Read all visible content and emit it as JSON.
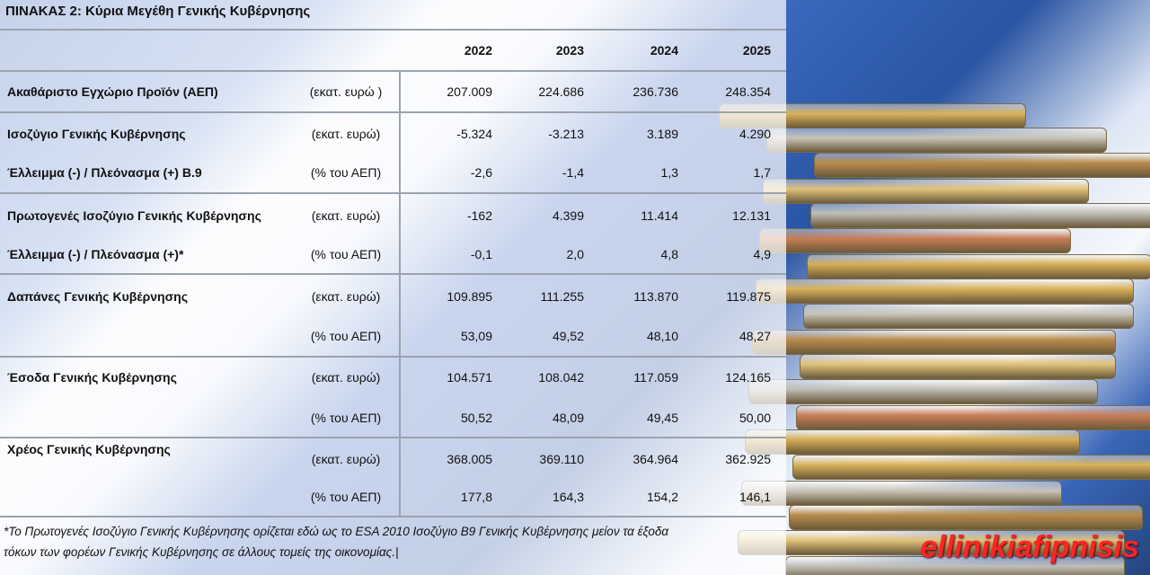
{
  "header": {
    "title": "ΠΙΝΑΚΑΣ 2: Κύρια Μεγέθη Γενικής Κυβέρνησης"
  },
  "table": {
    "columns": [
      "2022",
      "2023",
      "2024",
      "2025"
    ],
    "groups": [
      {
        "rows": [
          {
            "label": "Ακαθάριστο Εγχώριο Προϊόν (ΑΕΠ)",
            "unit": "(εκατ. ευρώ )",
            "values": [
              "207.009",
              "224.686",
              "236.736",
              "248.354"
            ]
          }
        ]
      },
      {
        "rows": [
          {
            "label": "Ισοζύγιο Γενικής Κυβέρνησης",
            "unit": "(εκατ. ευρώ)",
            "values": [
              "-5.324",
              "-3.213",
              "3.189",
              "4.290"
            ]
          },
          {
            "label": "Έλλειμμα  (-) / Πλεόνασμα (+) Β.9",
            "unit": "(% του ΑΕΠ)",
            "values": [
              "-2,6",
              "-1,4",
              "1,3",
              "1,7"
            ]
          }
        ]
      },
      {
        "rows": [
          {
            "label": "Πρωτογενές Ισοζύγιο  Γενικής Κυβέρνησης",
            "unit": "(εκατ. ευρώ)",
            "values": [
              "-162",
              "4.399",
              "11.414",
              "12.131"
            ]
          },
          {
            "label": "Έλλειμμα (-) / Πλεόνασμα (+)*",
            "unit": "(% του ΑΕΠ)",
            "values": [
              "-0,1",
              "2,0",
              "4,8",
              "4,9"
            ]
          }
        ]
      },
      {
        "rows": [
          {
            "label": "Δαπάνες Γενικής Κυβέρνησης",
            "unit": "(εκατ. ευρώ)",
            "values": [
              "109.895",
              "111.255",
              "113.870",
              "119.875"
            ]
          },
          {
            "unit": "(% του ΑΕΠ)",
            "values": [
              "53,09",
              "49,52",
              "48,10",
              "48,27"
            ]
          }
        ]
      },
      {
        "rows": [
          {
            "label": "Έσοδα Γενικής Κυβέρνησης",
            "unit": "(εκατ. ευρώ)",
            "values": [
              "104.571",
              "108.042",
              "117.059",
              "124.165"
            ]
          },
          {
            "unit": "(% του ΑΕΠ)",
            "values": [
              "50,52",
              "48,09",
              "49,45",
              "50,00"
            ]
          }
        ]
      },
      {
        "rows": [
          {
            "label": "Χρέος Γενικής Κυβέρνησης",
            "unit": "(εκατ. ευρώ)",
            "values": [
              "368.005",
              "369.110",
              "364.964",
              "362.925"
            ]
          },
          {
            "unit": "(% του ΑΕΠ)",
            "values": [
              "177,8",
              "164,3",
              "154,2",
              "146,1"
            ]
          }
        ]
      }
    ]
  },
  "footnote": [
    "*Το Πρωτογενές Ισοζύγιο Γενικής Κυβέρνησης ορίζεται εδώ ως το ESA 2010 Ισοζύγιο Β9 Γενικής Κυβέρνησης μείον τα έξοδα",
    "τόκων των φορέων Γενικής Κυβέρνησης σε άλλους τομείς της οικονομίας.|"
  ],
  "watermark": "ellinikiafipnisis"
}
